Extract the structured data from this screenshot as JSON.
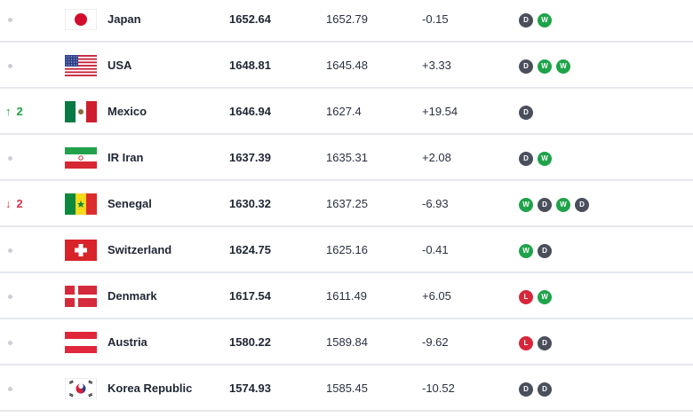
{
  "rows": [
    {
      "change": "",
      "dir": "none",
      "flag": "japan-flag-icon",
      "team": "Japan",
      "points": "1652.64",
      "previous": "1652.79",
      "diff": "-0.15",
      "form": [
        "D",
        "W"
      ]
    },
    {
      "change": "",
      "dir": "none",
      "flag": "usa-flag-icon",
      "team": "USA",
      "points": "1648.81",
      "previous": "1645.48",
      "diff": "+3.33",
      "form": [
        "D",
        "W",
        "W"
      ]
    },
    {
      "change": "2",
      "dir": "up",
      "flag": "mexico-flag-icon",
      "team": "Mexico",
      "points": "1646.94",
      "previous": "1627.4",
      "diff": "+19.54",
      "form": [
        "D"
      ]
    },
    {
      "change": "",
      "dir": "none",
      "flag": "iran-flag-icon",
      "team": "IR Iran",
      "points": "1637.39",
      "previous": "1635.31",
      "diff": "+2.08",
      "form": [
        "D",
        "W"
      ]
    },
    {
      "change": "2",
      "dir": "down",
      "flag": "senegal-flag-icon",
      "team": "Senegal",
      "points": "1630.32",
      "previous": "1637.25",
      "diff": "-6.93",
      "form": [
        "W",
        "D",
        "W",
        "D"
      ]
    },
    {
      "change": "",
      "dir": "none",
      "flag": "switzerland-flag-icon",
      "team": "Switzerland",
      "points": "1624.75",
      "previous": "1625.16",
      "diff": "-0.41",
      "form": [
        "W",
        "D"
      ]
    },
    {
      "change": "",
      "dir": "none",
      "flag": "denmark-flag-icon",
      "team": "Denmark",
      "points": "1617.54",
      "previous": "1611.49",
      "diff": "+6.05",
      "form": [
        "L",
        "W"
      ]
    },
    {
      "change": "",
      "dir": "none",
      "flag": "austria-flag-icon",
      "team": "Austria",
      "points": "1580.22",
      "previous": "1589.84",
      "diff": "-9.62",
      "form": [
        "L",
        "D"
      ]
    },
    {
      "change": "",
      "dir": "none",
      "flag": "korea-flag-icon",
      "team": "Korea Republic",
      "points": "1574.93",
      "previous": "1585.45",
      "diff": "-10.52",
      "form": [
        "D",
        "D"
      ]
    }
  ],
  "colors": {
    "win": "#1fa34a",
    "draw": "#4a4f5c",
    "loss": "#d8263b",
    "up": "#21a048",
    "down": "#d8334a"
  }
}
